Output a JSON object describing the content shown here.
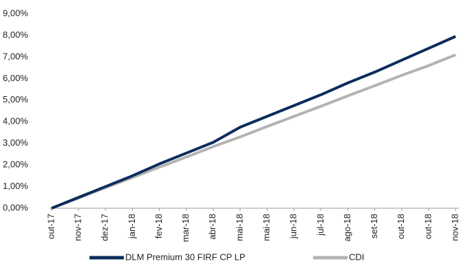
{
  "chart_data": {
    "type": "line",
    "categories": [
      "out-17",
      "nov-17",
      "dez-17",
      "jan-18",
      "fev-18",
      "mar-18",
      "abr-18",
      "mai-18",
      "mai-18",
      "jun-18",
      "jul-18",
      "ago-18",
      "set-18",
      "out-18",
      "out-18",
      "nov-18"
    ],
    "series": [
      {
        "name": "DLM Premium 30 FIRF CP LP",
        "color": "#0b2d5b",
        "values": [
          0,
          0.5,
          1.0,
          1.5,
          2.05,
          2.55,
          3.05,
          3.75,
          4.25,
          4.75,
          5.25,
          5.8,
          6.3,
          6.85,
          7.4,
          7.95
        ]
      },
      {
        "name": "CDI",
        "color": "#b3b3b3",
        "values": [
          0,
          0.47,
          0.95,
          1.42,
          1.9,
          2.37,
          2.85,
          3.3,
          3.78,
          4.25,
          4.72,
          5.2,
          5.67,
          6.15,
          6.6,
          7.1
        ]
      }
    ],
    "ylim": [
      0,
      9
    ],
    "yticks": [
      {
        "value": 0,
        "label": "0,00%"
      },
      {
        "value": 1,
        "label": "1,00%"
      },
      {
        "value": 2,
        "label": "2,00%"
      },
      {
        "value": 3,
        "label": "3,00%"
      },
      {
        "value": 4,
        "label": "4,00%"
      },
      {
        "value": 5,
        "label": "5,00%"
      },
      {
        "value": 6,
        "label": "6,00%"
      },
      {
        "value": 7,
        "label": "7,00%"
      },
      {
        "value": 8,
        "label": "8,00%"
      },
      {
        "value": 9,
        "label": "9,00%"
      }
    ],
    "legend": "bottom"
  }
}
